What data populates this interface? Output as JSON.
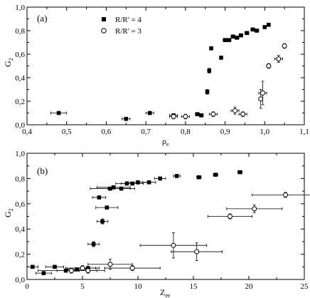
{
  "chart_data": [
    {
      "type": "scatter",
      "panel_label": "(a)",
      "xlabel": "ρ",
      "xlabel_sub": "e",
      "ylabel": "G",
      "ylabel_sub": "2",
      "xlim": [
        0.4,
        1.1
      ],
      "ylim": [
        0.0,
        1.0
      ],
      "xticks": [
        "0,4",
        "0,5",
        "0,6",
        "0,7",
        "0,8",
        "0,9",
        "1,0",
        "1,1"
      ],
      "yticks": [
        "0,0",
        "0,2",
        "0,4",
        "0,6",
        "0,8",
        "1,0"
      ],
      "legend_position": "top-left",
      "series": [
        {
          "name": "R/R' = 4",
          "marker": "filled-square",
          "points": [
            {
              "x": 0.48,
              "y": 0.1,
              "xerr": 0.02,
              "yerr": 0.0
            },
            {
              "x": 0.65,
              "y": 0.05,
              "xerr": 0.01,
              "yerr": 0.0
            },
            {
              "x": 0.71,
              "y": 0.1,
              "xerr": 0.01,
              "yerr": 0.0
            },
            {
              "x": 0.77,
              "y": 0.08,
              "xerr": 0.01,
              "yerr": 0.0
            },
            {
              "x": 0.83,
              "y": 0.09,
              "xerr": 0.005,
              "yerr": 0.0
            },
            {
              "x": 0.84,
              "y": 0.08,
              "xerr": 0.005,
              "yerr": 0.0
            },
            {
              "x": 0.855,
              "y": 0.28,
              "xerr": 0.0,
              "yerr": 0.02
            },
            {
              "x": 0.86,
              "y": 0.46,
              "xerr": 0.0,
              "yerr": 0.02
            },
            {
              "x": 0.865,
              "y": 0.65,
              "xerr": 0.0,
              "yerr": 0.0
            },
            {
              "x": 0.89,
              "y": 0.57,
              "xerr": 0.0,
              "yerr": 0.0
            },
            {
              "x": 0.9,
              "y": 0.72,
              "xerr": 0.005,
              "yerr": 0.0
            },
            {
              "x": 0.91,
              "y": 0.72,
              "xerr": 0.005,
              "yerr": 0.0
            },
            {
              "x": 0.92,
              "y": 0.75,
              "xerr": 0.005,
              "yerr": 0.0
            },
            {
              "x": 0.93,
              "y": 0.74,
              "xerr": 0.005,
              "yerr": 0.0
            },
            {
              "x": 0.94,
              "y": 0.76,
              "xerr": 0.005,
              "yerr": 0.0
            },
            {
              "x": 0.955,
              "y": 0.78,
              "xerr": 0.005,
              "yerr": 0.0
            },
            {
              "x": 0.97,
              "y": 0.81,
              "xerr": 0.005,
              "yerr": 0.0
            },
            {
              "x": 0.98,
              "y": 0.8,
              "xerr": 0.005,
              "yerr": 0.0
            },
            {
              "x": 1.0,
              "y": 0.83,
              "xerr": 0.0,
              "yerr": 0.0
            },
            {
              "x": 1.01,
              "y": 0.85,
              "xerr": 0.0,
              "yerr": 0.0
            }
          ]
        },
        {
          "name": "R/R' = 3",
          "marker": "open-circle",
          "points": [
            {
              "x": 0.77,
              "y": 0.07,
              "xerr": 0.01,
              "yerr": 0.02
            },
            {
              "x": 0.8,
              "y": 0.07,
              "xerr": 0.01,
              "yerr": 0.02
            },
            {
              "x": 0.87,
              "y": 0.09,
              "xerr": 0.01,
              "yerr": 0.02
            },
            {
              "x": 0.925,
              "y": 0.12,
              "xerr": 0.01,
              "yerr": 0.03
            },
            {
              "x": 0.945,
              "y": 0.09,
              "xerr": 0.01,
              "yerr": 0.02
            },
            {
              "x": 0.99,
              "y": 0.22,
              "xerr": 0.005,
              "yerr": 0.08
            },
            {
              "x": 0.995,
              "y": 0.27,
              "xerr": 0.01,
              "yerr": 0.1
            },
            {
              "x": 1.01,
              "y": 0.5,
              "xerr": 0.005,
              "yerr": 0.02
            },
            {
              "x": 1.035,
              "y": 0.56,
              "xerr": 0.01,
              "yerr": 0.03
            },
            {
              "x": 1.05,
              "y": 0.67,
              "xerr": 0.005,
              "yerr": 0.02
            }
          ]
        }
      ]
    },
    {
      "type": "scatter",
      "panel_label": "(b)",
      "xlabel": "Z",
      "xlabel_sub": "ee",
      "ylabel": "G",
      "ylabel_sub": "2",
      "xlim": [
        0,
        25
      ],
      "ylim": [
        0.0,
        1.0
      ],
      "xticks": [
        "0",
        "5",
        "10",
        "15",
        "20",
        "25"
      ],
      "yticks": [
        "0,0",
        "0,2",
        "0,4",
        "0,6",
        "0,8",
        "1,0"
      ],
      "series": [
        {
          "name": "R/R' = 4",
          "marker": "filled-square",
          "points": [
            {
              "x": 0.5,
              "y": 0.1,
              "xerr": 0.5,
              "yerr": 0.0
            },
            {
              "x": 1.5,
              "y": 0.05,
              "xerr": 0.7,
              "yerr": 0.0
            },
            {
              "x": 2.5,
              "y": 0.1,
              "xerr": 0.8,
              "yerr": 0.0
            },
            {
              "x": 3.5,
              "y": 0.07,
              "xerr": 0.8,
              "yerr": 0.0
            },
            {
              "x": 4.5,
              "y": 0.08,
              "xerr": 0.8,
              "yerr": 0.0
            },
            {
              "x": 5.5,
              "y": 0.09,
              "xerr": 0.7,
              "yerr": 0.0
            },
            {
              "x": 6.0,
              "y": 0.28,
              "xerr": 0.5,
              "yerr": 0.02
            },
            {
              "x": 6.5,
              "y": 0.65,
              "xerr": 0.6,
              "yerr": 0.0
            },
            {
              "x": 6.8,
              "y": 0.46,
              "xerr": 0.5,
              "yerr": 0.02
            },
            {
              "x": 7.2,
              "y": 0.57,
              "xerr": 1.0,
              "yerr": 0.0
            },
            {
              "x": 7.5,
              "y": 0.72,
              "xerr": 1.8,
              "yerr": 0.0
            },
            {
              "x": 7.8,
              "y": 0.73,
              "xerr": 1.5,
              "yerr": 0.0
            },
            {
              "x": 8.5,
              "y": 0.72,
              "xerr": 1.2,
              "yerr": 0.0
            },
            {
              "x": 9.0,
              "y": 0.76,
              "xerr": 1.0,
              "yerr": 0.0
            },
            {
              "x": 9.5,
              "y": 0.76,
              "xerr": 1.0,
              "yerr": 0.0
            },
            {
              "x": 10.0,
              "y": 0.77,
              "xerr": 1.0,
              "yerr": 0.0
            },
            {
              "x": 11.0,
              "y": 0.77,
              "xerr": 0.6,
              "yerr": 0.0
            },
            {
              "x": 12.0,
              "y": 0.8,
              "xerr": 0.5,
              "yerr": 0.0
            },
            {
              "x": 13.5,
              "y": 0.82,
              "xerr": 0.3,
              "yerr": 0.0
            },
            {
              "x": 15.5,
              "y": 0.81,
              "xerr": 0.2,
              "yerr": 0.0
            },
            {
              "x": 17.0,
              "y": 0.83,
              "xerr": 0.2,
              "yerr": 0.0
            },
            {
              "x": 19.2,
              "y": 0.85,
              "xerr": 0.2,
              "yerr": 0.0
            }
          ]
        },
        {
          "name": "R/R' = 3",
          "marker": "open-circle",
          "points": [
            {
              "x": 4.0,
              "y": 0.07,
              "xerr": 3.0,
              "yerr": 0.02
            },
            {
              "x": 5.0,
              "y": 0.09,
              "xerr": 1.5,
              "yerr": 0.02
            },
            {
              "x": 5.5,
              "y": 0.07,
              "xerr": 0.8,
              "yerr": 0.02
            },
            {
              "x": 7.5,
              "y": 0.12,
              "xerr": 2.0,
              "yerr": 0.04
            },
            {
              "x": 9.5,
              "y": 0.09,
              "xerr": 2.5,
              "yerr": 0.02
            },
            {
              "x": 13.2,
              "y": 0.27,
              "xerr": 3.0,
              "yerr": 0.1
            },
            {
              "x": 15.3,
              "y": 0.22,
              "xerr": 2.3,
              "yerr": 0.07
            },
            {
              "x": 18.3,
              "y": 0.5,
              "xerr": 2.0,
              "yerr": 0.02
            },
            {
              "x": 20.5,
              "y": 0.56,
              "xerr": 2.5,
              "yerr": 0.03
            },
            {
              "x": 23.3,
              "y": 0.67,
              "xerr": 3.0,
              "yerr": 0.02
            }
          ]
        }
      ]
    }
  ]
}
